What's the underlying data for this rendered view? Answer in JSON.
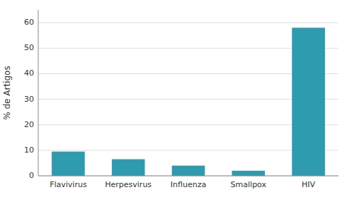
{
  "chart_data": {
    "type": "bar",
    "categories": [
      "Flavivirus",
      "Herpesvirus",
      "Influenza",
      "Smallpox",
      "HIV"
    ],
    "values": [
      9.5,
      6.5,
      4.0,
      2.0,
      58.0
    ],
    "color": "#2E9BAE",
    "ylabel": "% de Artigos",
    "ylim": [
      0,
      65
    ],
    "yticks": [
      0,
      10,
      20,
      30,
      40,
      50,
      60
    ],
    "grid": true
  }
}
